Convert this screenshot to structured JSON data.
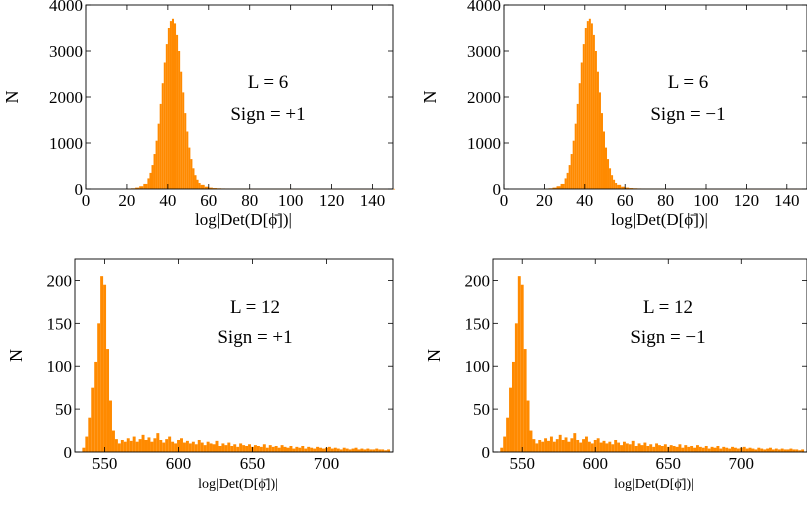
{
  "colors": {
    "bar": "#ff8a00"
  },
  "chart_data": [
    {
      "type": "bar",
      "title": "",
      "annotation": [
        "L = 6",
        "Sign = +1"
      ],
      "xlabel": "log|Det(D[ϕ̄])|",
      "ylabel": "N",
      "xlim": [
        0,
        150
      ],
      "ylim": [
        0,
        4000
      ],
      "xticks": [
        0,
        20,
        40,
        60,
        80,
        100,
        120,
        140
      ],
      "yticks": [
        0,
        1000,
        2000,
        3000,
        4000
      ],
      "bin_width": 1,
      "bins_x": [
        20,
        22,
        24,
        26,
        28,
        30,
        31,
        32,
        33,
        34,
        35,
        36,
        37,
        38,
        39,
        40,
        41,
        42,
        43,
        44,
        45,
        46,
        47,
        48,
        49,
        50,
        51,
        52,
        53,
        54,
        55,
        56,
        58,
        60,
        62,
        64,
        66,
        68,
        70,
        80,
        90,
        100,
        110,
        120,
        130,
        140,
        150
      ],
      "values": [
        5,
        15,
        30,
        60,
        110,
        230,
        350,
        520,
        760,
        1050,
        1420,
        1850,
        2300,
        2750,
        3150,
        3500,
        3650,
        3700,
        3600,
        3350,
        3000,
        2550,
        2100,
        1650,
        1250,
        900,
        650,
        450,
        300,
        200,
        130,
        90,
        50,
        30,
        20,
        15,
        12,
        10,
        8,
        6,
        5,
        4,
        4,
        3,
        3,
        3,
        3
      ]
    },
    {
      "type": "bar",
      "title": "",
      "annotation": [
        "L = 6",
        "Sign = −1"
      ],
      "xlabel": "log|Det(D[ϕ̄])|",
      "ylabel": "N",
      "xlim": [
        0,
        150
      ],
      "ylim": [
        0,
        4000
      ],
      "xticks": [
        0,
        20,
        40,
        60,
        80,
        100,
        120,
        140
      ],
      "yticks": [
        0,
        1000,
        2000,
        3000,
        4000
      ],
      "bin_width": 1,
      "bins_x": [
        20,
        22,
        24,
        26,
        28,
        30,
        31,
        32,
        33,
        34,
        35,
        36,
        37,
        38,
        39,
        40,
        41,
        42,
        43,
        44,
        45,
        46,
        47,
        48,
        49,
        50,
        51,
        52,
        53,
        54,
        55,
        56,
        58,
        60,
        62,
        64,
        66,
        68,
        70,
        80,
        90,
        100,
        110,
        120,
        130,
        140,
        150
      ],
      "values": [
        5,
        15,
        30,
        60,
        110,
        230,
        350,
        520,
        760,
        1050,
        1420,
        1850,
        2300,
        2750,
        3150,
        3500,
        3650,
        3700,
        3600,
        3350,
        3000,
        2550,
        2100,
        1650,
        1250,
        900,
        650,
        450,
        300,
        200,
        130,
        90,
        50,
        30,
        20,
        15,
        12,
        10,
        8,
        6,
        5,
        4,
        4,
        3,
        3,
        3,
        3
      ]
    },
    {
      "type": "bar",
      "title": "",
      "annotation": [
        "L = 12",
        "Sign = +1"
      ],
      "xlabel": "log|Det(D[ϕ̄])|",
      "ylabel": "N",
      "xlim": [
        530,
        745
      ],
      "ylim": [
        0,
        225
      ],
      "xticks": [
        550,
        600,
        650,
        700
      ],
      "yticks": [
        0,
        50,
        100,
        150,
        200
      ],
      "bin_width": 2,
      "values": [
        5,
        18,
        40,
        75,
        105,
        150,
        205,
        195,
        120,
        60,
        25,
        15,
        10,
        14,
        12,
        16,
        13,
        18,
        12,
        15,
        20,
        14,
        17,
        12,
        16,
        22,
        14,
        11,
        15,
        18,
        12,
        10,
        14,
        16,
        11,
        13,
        10,
        12,
        9,
        14,
        11,
        8,
        12,
        10,
        9,
        13,
        7,
        10,
        8,
        11,
        7,
        9,
        6,
        10,
        8,
        7,
        9,
        6,
        8,
        7,
        6,
        9,
        5,
        8,
        6,
        7,
        5,
        8,
        6,
        5,
        7,
        4,
        6,
        5,
        7,
        4,
        6,
        5,
        4,
        6,
        5,
        4,
        5,
        6,
        4,
        5,
        4,
        3,
        5,
        4,
        3,
        4,
        5,
        3,
        4,
        3,
        4,
        3,
        3,
        4,
        3,
        3,
        2,
        3
      ]
    },
    {
      "type": "bar",
      "title": "",
      "annotation": [
        "L = 12",
        "Sign = −1"
      ],
      "xlabel": "log|Det(D[ϕ̄])|",
      "ylabel": "N",
      "xlim": [
        530,
        745
      ],
      "ylim": [
        0,
        225
      ],
      "xticks": [
        550,
        600,
        650,
        700
      ],
      "yticks": [
        0,
        50,
        100,
        150,
        200
      ],
      "bin_width": 2,
      "values": [
        5,
        18,
        40,
        75,
        105,
        150,
        205,
        195,
        120,
        60,
        25,
        15,
        10,
        14,
        12,
        16,
        13,
        18,
        12,
        15,
        20,
        14,
        17,
        12,
        16,
        22,
        14,
        11,
        15,
        18,
        12,
        10,
        14,
        16,
        11,
        13,
        10,
        12,
        9,
        14,
        11,
        8,
        12,
        10,
        9,
        13,
        7,
        10,
        8,
        11,
        7,
        9,
        6,
        10,
        8,
        7,
        9,
        6,
        8,
        7,
        6,
        9,
        5,
        8,
        6,
        7,
        5,
        8,
        6,
        5,
        7,
        4,
        6,
        5,
        7,
        4,
        6,
        5,
        4,
        6,
        5,
        4,
        5,
        6,
        4,
        5,
        4,
        3,
        5,
        4,
        3,
        4,
        5,
        3,
        4,
        3,
        4,
        3,
        3,
        4,
        3,
        3,
        2,
        3
      ]
    }
  ]
}
